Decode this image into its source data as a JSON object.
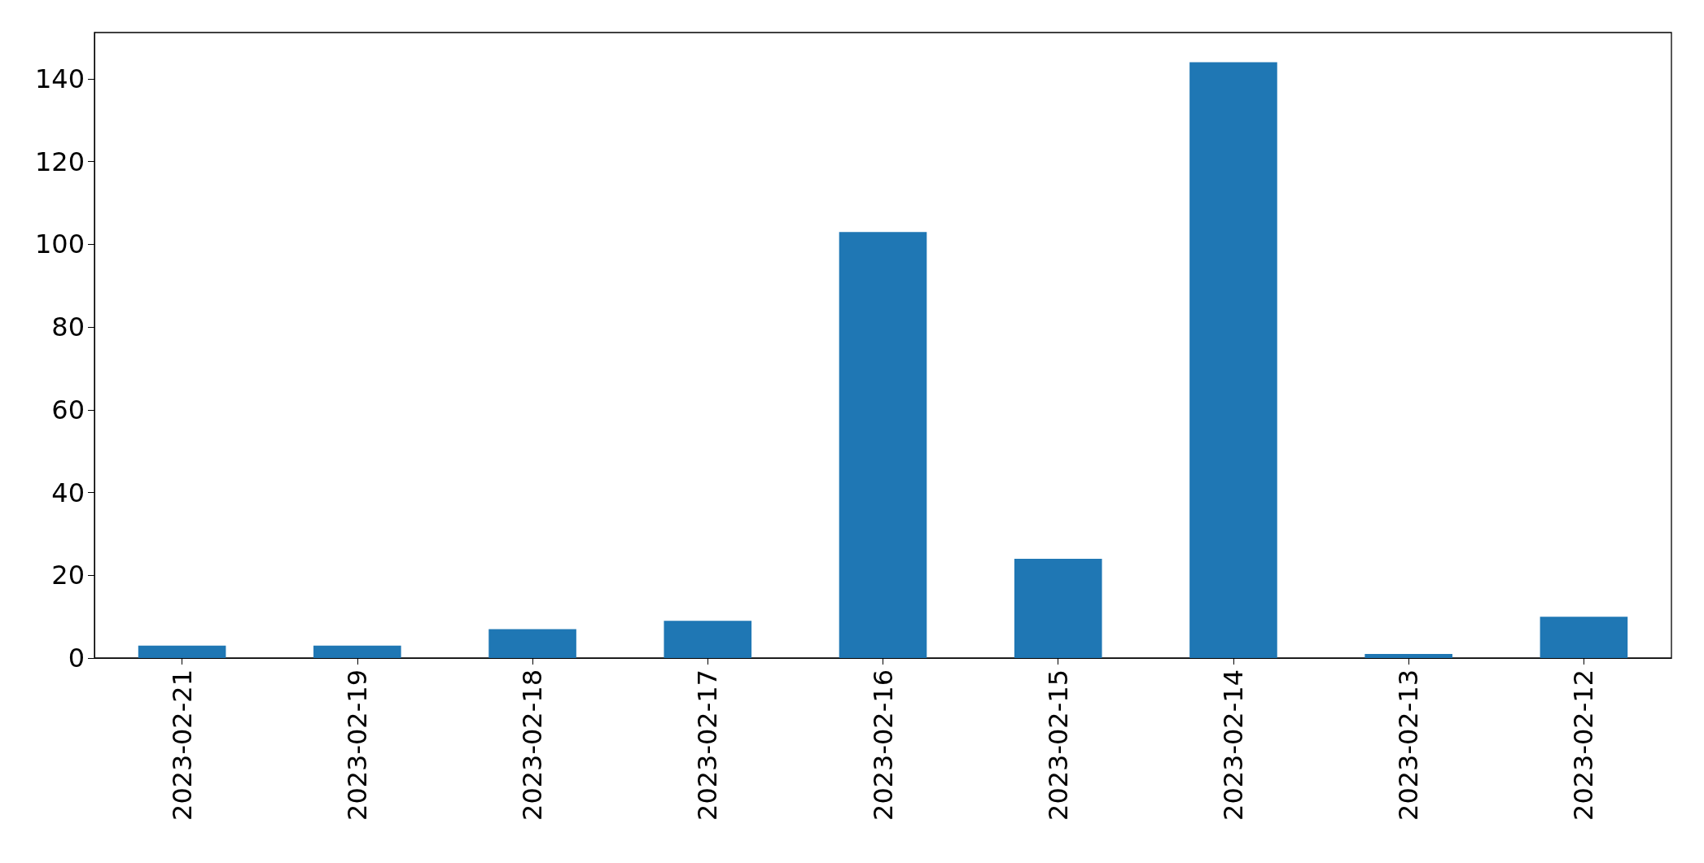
{
  "chart_data": {
    "type": "bar",
    "categories": [
      "2023-02-21",
      "2023-02-19",
      "2023-02-18",
      "2023-02-17",
      "2023-02-16",
      "2023-02-15",
      "2023-02-14",
      "2023-02-13",
      "2023-02-12"
    ],
    "values": [
      3,
      3,
      7,
      9,
      103,
      24,
      144,
      1,
      10
    ],
    "color": "#1f77b4",
    "ylim": [
      0,
      151.2
    ],
    "yticks": [
      0,
      20,
      40,
      60,
      80,
      100,
      120,
      140
    ],
    "grid": false
  }
}
